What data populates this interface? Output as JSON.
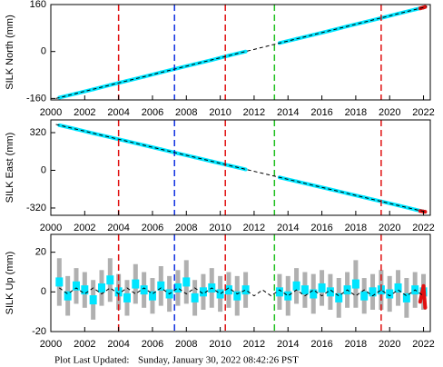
{
  "chart_data": [
    {
      "type": "scatter",
      "ylabel": "SILK North (mm)",
      "xlim": [
        2000,
        2022.4
      ],
      "xticks": [
        2000,
        2002,
        2004,
        2006,
        2008,
        2010,
        2012,
        2014,
        2016,
        2018,
        2020,
        2022
      ],
      "ylim": [
        -165,
        160
      ],
      "yticks": [
        -160,
        0,
        160
      ],
      "events": {
        "x": [
          2004.0,
          2007.3,
          2010.3,
          2013.2,
          2019.5
        ],
        "colors": [
          "#e01010",
          "#1030e0",
          "#e01010",
          "#20c020",
          "#e01010"
        ]
      },
      "series": [
        {
          "color": "#00e5ff",
          "x": [
            2000.5,
            2001.5,
            2002.5,
            2003.5,
            2004.5,
            2005.5,
            2006.5,
            2007.5,
            2008.5,
            2009.5,
            2010.5,
            2011.5,
            2012.5,
            2013.5,
            2014.5,
            2015.5,
            2016.5,
            2017.5,
            2018.5,
            2019.5,
            2020.5,
            2021.5,
            2022.0
          ],
          "values": [
            -157,
            -143,
            -129,
            -114,
            -100,
            -86,
            -71,
            -57,
            -43,
            -29,
            -14,
            0,
            null,
            29,
            43,
            57,
            71,
            86,
            100,
            114,
            129,
            143,
            150
          ]
        },
        {
          "color": "#000000",
          "dash": true,
          "x": [
            2000.3,
            2022.2
          ],
          "values": [
            -160,
            153
          ]
        },
        {
          "color": "#e01010",
          "x": [
            2021.8,
            2022.0,
            2022.1
          ],
          "values": [
            147,
            150,
            152
          ]
        }
      ]
    },
    {
      "type": "scatter",
      "ylabel": "SILK East (mm)",
      "xlim": [
        2000,
        2022.4
      ],
      "xticks": [
        2000,
        2002,
        2004,
        2006,
        2008,
        2010,
        2012,
        2014,
        2016,
        2018,
        2020,
        2022
      ],
      "ylim": [
        -382,
        428
      ],
      "yticks": [
        -320,
        0,
        320
      ],
      "events": {
        "x": [
          2004.0,
          2007.3,
          2010.3,
          2013.2,
          2019.5
        ],
        "colors": [
          "#e01010",
          "#1030e0",
          "#e01010",
          "#20c020",
          "#e01010"
        ]
      },
      "series": [
        {
          "color": "#00e5ff",
          "x": [
            2000.5,
            2001.5,
            2002.5,
            2003.5,
            2004.5,
            2005.5,
            2006.5,
            2007.5,
            2008.5,
            2009.5,
            2010.5,
            2011.5,
            2012.5,
            2013.5,
            2014.5,
            2015.5,
            2016.5,
            2017.5,
            2018.5,
            2019.5,
            2020.5,
            2021.5,
            2022.0
          ],
          "values": [
            383,
            349,
            314,
            281,
            247,
            213,
            179,
            144,
            110,
            76,
            42,
            8,
            null,
            -60,
            -94,
            -128,
            -162,
            -196,
            -230,
            -264,
            -298,
            -333,
            -350
          ]
        },
        {
          "color": "#000000",
          "dash": true,
          "x": [
            2000.3,
            2022.2
          ],
          "values": [
            390,
            -356
          ]
        },
        {
          "color": "#e01010",
          "x": [
            2021.8,
            2022.0,
            2022.1
          ],
          "values": [
            -345,
            -350,
            -352
          ]
        }
      ]
    },
    {
      "type": "scatter",
      "ylabel": "SILK Up (mm)",
      "xlim": [
        2000,
        2022.4
      ],
      "xticks": [
        2000,
        2002,
        2004,
        2006,
        2008,
        2010,
        2012,
        2014,
        2016,
        2018,
        2020,
        2022
      ],
      "ylim": [
        -20,
        29
      ],
      "yticks": [
        -20,
        0,
        20
      ],
      "events": {
        "x": [
          2004.0,
          2007.3,
          2010.3,
          2013.2,
          2019.5
        ],
        "colors": [
          "#e01010",
          "#1030e0",
          "#e01010",
          "#20c020",
          "#e01010"
        ]
      },
      "series": [
        {
          "color": "#00e5ff",
          "x": [
            2000.5,
            2001.0,
            2001.5,
            2002.0,
            2002.5,
            2003.0,
            2003.5,
            2004.0,
            2004.5,
            2005.0,
            2005.5,
            2006.0,
            2006.5,
            2007.0,
            2007.5,
            2008.0,
            2008.5,
            2009.0,
            2009.5,
            2010.0,
            2010.5,
            2011.0,
            2011.5,
            2012.0,
            2012.5,
            2013.0,
            2013.5,
            2014.0,
            2014.5,
            2015.0,
            2015.5,
            2016.0,
            2016.5,
            2017.0,
            2017.5,
            2018.0,
            2018.5,
            2019.0,
            2019.5,
            2020.0,
            2020.5,
            2021.0,
            2021.5,
            2022.0
          ],
          "values": [
            5,
            -2,
            3,
            1,
            -4,
            2,
            6,
            0,
            -3,
            4,
            1,
            -2,
            3,
            -1,
            2,
            5,
            -3,
            0,
            2,
            -1,
            1,
            -2,
            1,
            null,
            null,
            null,
            0,
            -2,
            3,
            1,
            -1,
            2,
            0,
            -3,
            1,
            4,
            -2,
            0,
            1,
            -1,
            2,
            -3,
            1,
            0
          ],
          "errors": [
            12,
            10,
            9,
            9,
            10,
            9,
            11,
            9,
            9,
            10,
            9,
            9,
            10,
            9,
            9,
            11,
            9,
            9,
            10,
            9,
            9,
            10,
            9,
            null,
            null,
            null,
            9,
            10,
            9,
            9,
            10,
            9,
            9,
            10,
            9,
            12,
            9,
            9,
            10,
            9,
            9,
            10,
            9,
            9
          ]
        },
        {
          "color": "#000000",
          "dash": true,
          "x": [
            2000.5,
            2001.0,
            2001.5,
            2002.0,
            2002.5,
            2003.0,
            2003.5,
            2004.0,
            2004.5,
            2005.0,
            2005.5,
            2006.0,
            2006.5,
            2007.0,
            2007.5,
            2008.0,
            2008.5,
            2009.0,
            2009.5,
            2010.0,
            2010.5,
            2011.0,
            2011.5,
            2012.0,
            2012.5,
            2013.0,
            2013.5,
            2014.0,
            2014.5,
            2015.0,
            2015.5,
            2016.0,
            2016.5,
            2017.0,
            2017.5,
            2018.0,
            2018.5,
            2019.0,
            2019.5,
            2020.0,
            2020.5,
            2021.0,
            2021.5,
            2022.0
          ],
          "values": [
            2,
            -1,
            2,
            -1,
            2,
            -1,
            2,
            -1,
            2,
            -1,
            2,
            -1,
            2,
            -1,
            2,
            -1,
            2,
            -1,
            2,
            -1,
            2,
            -1,
            1,
            -2,
            1,
            -2,
            1,
            -2,
            1,
            -2,
            1,
            -2,
            1,
            -2,
            1,
            -2,
            1,
            -2,
            1,
            -2,
            1,
            -2,
            1,
            -2
          ]
        },
        {
          "color": "#e01010",
          "x": [
            2021.8,
            2022.0,
            2022.1
          ],
          "values": [
            -5,
            3,
            -8
          ]
        }
      ]
    }
  ],
  "footer": {
    "label": "Plot Last Updated:",
    "date": "Sunday, January 30, 2022 08:42:26 PST"
  }
}
